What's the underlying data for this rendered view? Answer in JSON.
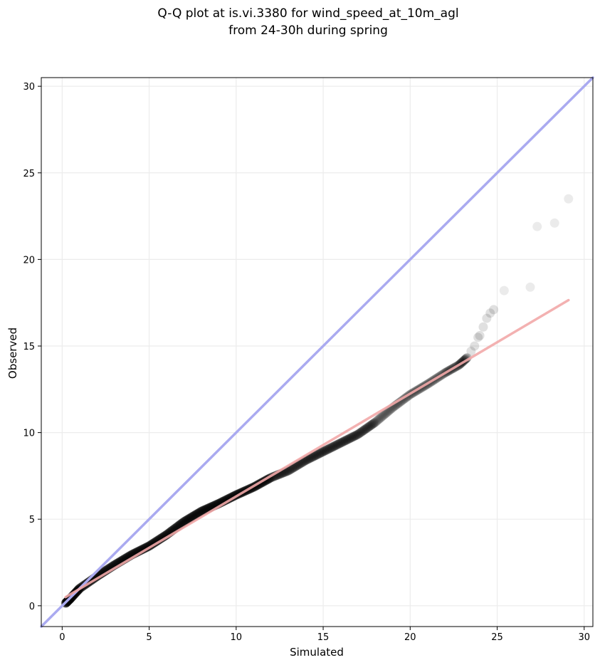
{
  "chart_data": {
    "type": "scatter",
    "title_lines": [
      "Q-Q plot at is.vi.3380 for wind_speed_at_10m_agl",
      "from 24-30h during spring"
    ],
    "xlabel": "Simulated",
    "ylabel": "Observed",
    "xlim": [
      -1.2,
      30.5
    ],
    "ylim": [
      -1.2,
      30.5
    ],
    "x_ticks": [
      0,
      5,
      10,
      15,
      20,
      25,
      30
    ],
    "y_ticks": [
      0,
      5,
      10,
      15,
      20,
      25,
      30
    ],
    "grid": true,
    "colors": {
      "points": "#000000",
      "identity_line": "#aaaaf0",
      "fit_line": "#f2a8a8",
      "grid": "#ececec"
    },
    "identity_line": {
      "x": [
        -1.2,
        30.5
      ],
      "y": [
        -1.2,
        30.5
      ]
    },
    "fit_line": {
      "x": [
        0.2,
        29.1
      ],
      "y": [
        0.5,
        17.65
      ]
    },
    "curve_points": {
      "x": [
        0.2,
        0.5,
        1.0,
        2.0,
        3.0,
        4.0,
        5.0,
        6.0,
        7.0,
        8.0,
        9.0,
        10.0,
        11.0,
        12.0,
        13.0,
        14.0,
        15.0,
        16.0,
        17.0,
        18.0,
        19.0,
        20.0,
        21.0,
        22.0,
        22.8,
        23.3
      ],
      "y": [
        0.15,
        0.45,
        1.0,
        1.7,
        2.35,
        2.95,
        3.45,
        4.1,
        4.85,
        5.45,
        5.9,
        6.4,
        6.85,
        7.4,
        7.8,
        8.4,
        8.9,
        9.4,
        9.9,
        10.6,
        11.45,
        12.2,
        12.8,
        13.45,
        13.9,
        14.35
      ]
    },
    "tail_points": {
      "x": [
        23.5,
        23.7,
        23.9,
        24.0,
        24.2,
        24.4,
        24.6,
        24.8,
        25.4,
        26.9,
        27.3,
        28.3,
        29.1
      ],
      "y": [
        14.7,
        15.0,
        15.5,
        15.6,
        16.1,
        16.6,
        16.9,
        17.1,
        18.2,
        18.4,
        21.9,
        22.1,
        23.5
      ]
    }
  }
}
